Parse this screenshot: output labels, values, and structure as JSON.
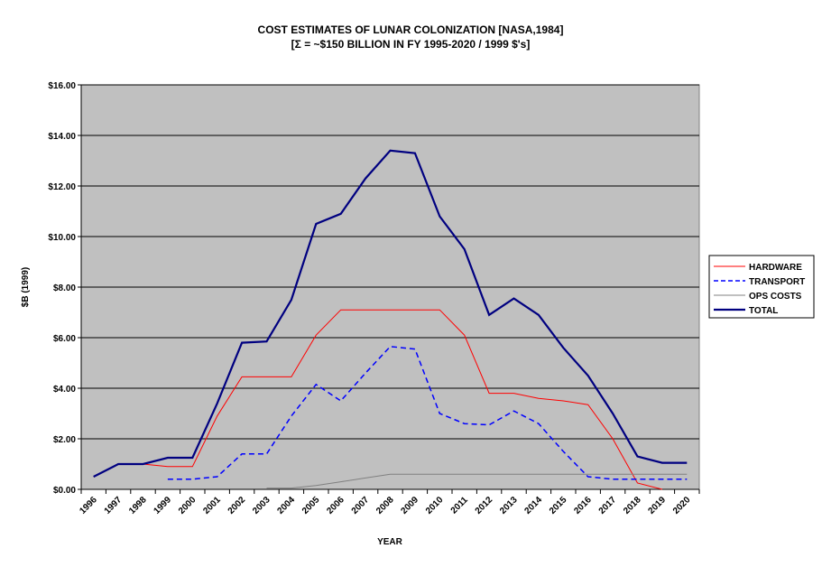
{
  "chart_data": {
    "type": "line",
    "title": "COST ESTIMATES OF LUNAR COLONIZATION [NASA,1984]",
    "subtitle": "[Σ = ~$150 BILLION IN FY 1995-2020 / 1999 $'s]",
    "xlabel": "YEAR",
    "ylabel": "$B (1999)",
    "ylim": [
      0,
      16
    ],
    "yticks": [
      "$0.00",
      "$2.00",
      "$4.00",
      "$6.00",
      "$8.00",
      "$10.00",
      "$12.00",
      "$14.00",
      "$16.00"
    ],
    "grid": true,
    "legend_position": "right",
    "categories": [
      "1996",
      "1997",
      "1998",
      "1999",
      "2000",
      "2001",
      "2002",
      "2003",
      "2004",
      "2005",
      "2006",
      "2007",
      "2008",
      "2009",
      "2010",
      "2011",
      "2012",
      "2013",
      "2014",
      "2015",
      "2016",
      "2017",
      "2018",
      "2019",
      "2020"
    ],
    "series": [
      {
        "name": "HARDWARE",
        "color": "#ff0000",
        "dash": "",
        "width": 1,
        "values": [
          0.5,
          1.0,
          1.0,
          0.9,
          0.9,
          2.9,
          4.45,
          4.45,
          4.45,
          6.1,
          7.1,
          7.1,
          7.1,
          7.1,
          7.1,
          6.1,
          3.8,
          3.8,
          3.6,
          3.5,
          3.35,
          2.0,
          0.25,
          0.0,
          null
        ]
      },
      {
        "name": "TRANSPORT",
        "color": "#0000ff",
        "dash": "6,4",
        "width": 1.5,
        "values": [
          null,
          null,
          null,
          0.4,
          0.4,
          0.5,
          1.4,
          1.4,
          2.9,
          4.15,
          3.5,
          4.6,
          5.65,
          5.55,
          3.0,
          2.6,
          2.55,
          3.1,
          2.6,
          1.5,
          0.5,
          0.4,
          0.4,
          0.4,
          0.4
        ]
      },
      {
        "name": "OPS COSTS",
        "color": "#808080",
        "dash": "",
        "width": 1,
        "values": [
          null,
          null,
          null,
          null,
          null,
          null,
          null,
          0.05,
          0.05,
          0.15,
          0.3,
          0.45,
          0.6,
          0.6,
          0.6,
          0.6,
          0.6,
          0.6,
          0.6,
          0.6,
          0.6,
          0.6,
          0.6,
          0.6,
          0.6
        ]
      },
      {
        "name": "TOTAL",
        "color": "#000080",
        "dash": "",
        "width": 2.2,
        "values": [
          0.5,
          1.0,
          1.0,
          1.25,
          1.25,
          3.4,
          5.8,
          5.85,
          7.5,
          10.5,
          10.9,
          12.3,
          13.4,
          13.3,
          10.8,
          9.5,
          6.9,
          7.55,
          6.9,
          5.6,
          4.5,
          3.0,
          1.3,
          1.05,
          1.05
        ]
      }
    ]
  }
}
